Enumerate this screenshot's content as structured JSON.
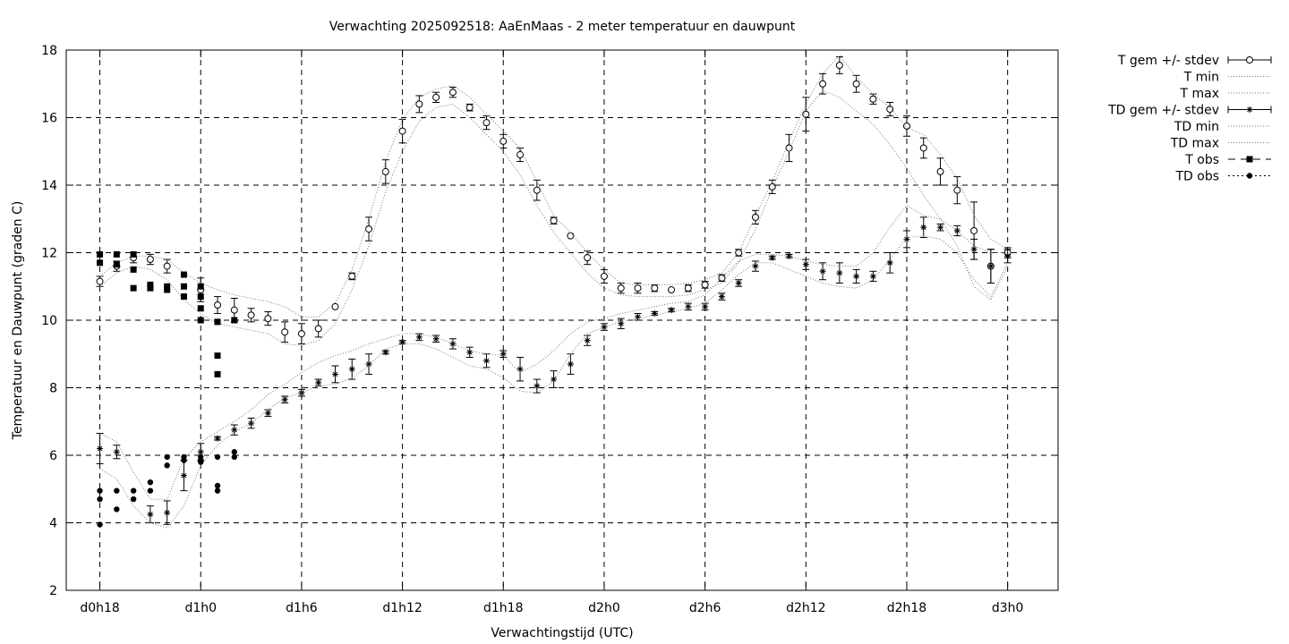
{
  "chart_data": {
    "type": "line",
    "title": "Verwachting 2025092518: AaEnMaas - 2 meter temperatuur en dauwpunt",
    "xlabel": "Verwachtingstijd (UTC)",
    "ylabel": "Temperatuur en Dauwpunt (graden C)",
    "x_unit": "hours since d0h0",
    "xlim": [
      16,
      75
    ],
    "ylim": [
      2,
      18
    ],
    "yticks": [
      2,
      4,
      6,
      8,
      10,
      12,
      14,
      16,
      18
    ],
    "xticks": [
      {
        "x": 18,
        "label": "d0h18"
      },
      {
        "x": 24,
        "label": "d1h0"
      },
      {
        "x": 30,
        "label": "d1h6"
      },
      {
        "x": 36,
        "label": "d1h12"
      },
      {
        "x": 42,
        "label": "d1h18"
      },
      {
        "x": 48,
        "label": "d2h0"
      },
      {
        "x": 54,
        "label": "d2h6"
      },
      {
        "x": 60,
        "label": "d2h12"
      },
      {
        "x": 66,
        "label": "d2h18"
      },
      {
        "x": 72,
        "label": "d3h0"
      }
    ],
    "grid": true,
    "legend_position": "outside-top-right",
    "series": [
      {
        "name": "T gem +/- stdev",
        "style": "errorbar-open-circle",
        "x": [
          18,
          19,
          20,
          21,
          22,
          24,
          25,
          26,
          27,
          28,
          29,
          30,
          31,
          32,
          33,
          34,
          35,
          36,
          37,
          38,
          39,
          40,
          41,
          42,
          43,
          44,
          45,
          46,
          47,
          48,
          49,
          50,
          51,
          52,
          53,
          54,
          55,
          56,
          57,
          58,
          59,
          60,
          61,
          62,
          63,
          64,
          65,
          66,
          67,
          68,
          69,
          70,
          71,
          72
        ],
        "y": [
          11.15,
          11.6,
          11.85,
          11.8,
          11.6,
          10.9,
          10.45,
          10.3,
          10.15,
          10.05,
          9.65,
          9.6,
          9.75,
          10.4,
          11.3,
          12.7,
          14.4,
          15.6,
          16.4,
          16.6,
          16.75,
          16.3,
          15.85,
          15.3,
          14.9,
          13.85,
          12.95,
          12.5,
          11.85,
          11.3,
          10.95,
          10.95,
          10.95,
          10.9,
          10.95,
          11.05,
          11.25,
          12.0,
          13.05,
          13.95,
          15.1,
          16.1,
          17.0,
          17.55,
          17.0,
          16.55,
          16.25,
          15.75,
          15.1,
          14.4,
          13.85,
          12.65,
          11.6,
          12.0
        ],
        "err": [
          0.15,
          0.15,
          0.15,
          0.15,
          0.2,
          0.35,
          0.25,
          0.35,
          0.2,
          0.2,
          0.3,
          0.3,
          0.25,
          0.0,
          0.1,
          0.35,
          0.35,
          0.35,
          0.25,
          0.15,
          0.15,
          0.1,
          0.2,
          0.2,
          0.2,
          0.3,
          0.1,
          0.0,
          0.2,
          0.2,
          0.15,
          0.15,
          0.1,
          0.0,
          0.1,
          0.1,
          0.1,
          0.1,
          0.2,
          0.2,
          0.4,
          0.5,
          0.3,
          0.25,
          0.25,
          0.15,
          0.2,
          0.3,
          0.3,
          0.4,
          0.4,
          0.85,
          0.5,
          0.15
        ]
      },
      {
        "name": "T min",
        "style": "dotted",
        "x": [
          18,
          19,
          20,
          21,
          22,
          23,
          24,
          25,
          26,
          27,
          28,
          29,
          30,
          31,
          32,
          33,
          34,
          35,
          36,
          37,
          38,
          39,
          40,
          41,
          42,
          43,
          44,
          45,
          46,
          47,
          48,
          49,
          50,
          51,
          52,
          53,
          54,
          55,
          56,
          57,
          58,
          59,
          60,
          61,
          62,
          63,
          64,
          65,
          66,
          67,
          68,
          69,
          70,
          71,
          72
        ],
        "y": [
          11.0,
          11.4,
          11.6,
          11.5,
          11.2,
          10.6,
          10.2,
          9.9,
          9.8,
          9.7,
          9.6,
          9.3,
          9.25,
          9.4,
          9.9,
          10.9,
          12.2,
          13.8,
          15.0,
          15.9,
          16.3,
          16.4,
          16.0,
          15.5,
          15.0,
          14.3,
          13.4,
          12.6,
          12.0,
          11.4,
          10.95,
          10.75,
          10.7,
          10.7,
          10.7,
          10.75,
          10.9,
          11.1,
          11.7,
          12.7,
          13.9,
          15.0,
          16.2,
          16.8,
          16.6,
          16.2,
          15.8,
          15.2,
          14.5,
          13.7,
          13.0,
          12.2,
          11.0,
          10.6,
          11.6
        ]
      },
      {
        "name": "T max",
        "style": "dotted",
        "x": [
          18,
          19,
          20,
          21,
          22,
          23,
          24,
          25,
          26,
          27,
          28,
          29,
          30,
          31,
          32,
          33,
          34,
          35,
          36,
          37,
          38,
          39,
          40,
          41,
          42,
          43,
          44,
          45,
          46,
          47,
          48,
          49,
          50,
          51,
          52,
          53,
          54,
          55,
          56,
          57,
          58,
          59,
          60,
          61,
          62,
          63,
          64,
          65,
          66,
          67,
          68,
          69,
          70,
          71,
          72
        ],
        "y": [
          11.3,
          11.7,
          11.9,
          11.9,
          11.8,
          11.4,
          11.1,
          10.9,
          10.75,
          10.65,
          10.55,
          10.4,
          10.1,
          10.1,
          10.5,
          11.5,
          13.0,
          14.7,
          15.95,
          16.6,
          16.85,
          16.95,
          16.6,
          16.1,
          15.6,
          15.1,
          14.1,
          13.1,
          12.6,
          12.0,
          11.5,
          11.1,
          11.05,
          11.05,
          11.05,
          11.1,
          11.2,
          11.4,
          12.0,
          13.1,
          14.1,
          15.3,
          16.4,
          17.3,
          17.85,
          17.2,
          16.7,
          16.3,
          15.7,
          15.5,
          14.9,
          14.2,
          13.1,
          12.4,
          12.1
        ]
      },
      {
        "name": "TD gem +/- stdev",
        "style": "errorbar-asterisk",
        "x": [
          18,
          19,
          21,
          22,
          23,
          24,
          25,
          26,
          27,
          28,
          29,
          30,
          31,
          32,
          33,
          34,
          35,
          36,
          37,
          38,
          39,
          40,
          41,
          42,
          43,
          44,
          45,
          46,
          47,
          48,
          49,
          50,
          51,
          52,
          53,
          54,
          55,
          56,
          57,
          58,
          59,
          60,
          61,
          62,
          63,
          64,
          65,
          66,
          67,
          68,
          69,
          70,
          71,
          72
        ],
        "y": [
          6.2,
          6.1,
          4.25,
          4.3,
          5.4,
          6.1,
          6.5,
          6.75,
          6.95,
          7.25,
          7.65,
          7.85,
          8.15,
          8.4,
          8.55,
          8.7,
          9.05,
          9.35,
          9.5,
          9.45,
          9.3,
          9.05,
          8.8,
          9.0,
          8.55,
          8.05,
          8.25,
          8.7,
          9.4,
          9.8,
          9.9,
          10.1,
          10.2,
          10.3,
          10.4,
          10.4,
          10.7,
          11.1,
          11.6,
          11.85,
          11.9,
          11.65,
          11.45,
          11.4,
          11.3,
          11.3,
          11.7,
          12.4,
          12.75,
          12.75,
          12.65,
          12.1,
          11.6,
          11.9
        ],
        "err": [
          0.45,
          0.2,
          0.25,
          0.35,
          0.45,
          0.25,
          0.05,
          0.15,
          0.15,
          0.1,
          0.1,
          0.1,
          0.1,
          0.25,
          0.3,
          0.3,
          0.05,
          0.05,
          0.1,
          0.1,
          0.15,
          0.15,
          0.2,
          0.1,
          0.35,
          0.2,
          0.25,
          0.3,
          0.15,
          0.1,
          0.15,
          0.1,
          0.05,
          0.05,
          0.1,
          0.1,
          0.1,
          0.1,
          0.15,
          0.05,
          0.05,
          0.15,
          0.25,
          0.3,
          0.2,
          0.15,
          0.3,
          0.25,
          0.3,
          0.1,
          0.15,
          0.3,
          0.5,
          0.2
        ]
      },
      {
        "name": "TD min",
        "style": "dotted",
        "x": [
          18,
          19,
          20,
          21,
          22,
          23,
          24,
          25,
          26,
          27,
          28,
          29,
          30,
          31,
          32,
          33,
          34,
          35,
          36,
          37,
          38,
          39,
          40,
          41,
          42,
          43,
          44,
          45,
          46,
          47,
          48,
          49,
          50,
          51,
          52,
          53,
          54,
          55,
          56,
          57,
          58,
          59,
          60,
          61,
          62,
          63,
          64,
          65,
          66,
          67,
          68,
          69,
          70,
          71,
          72
        ],
        "y": [
          5.6,
          5.3,
          4.5,
          4.0,
          3.85,
          4.5,
          5.7,
          6.3,
          6.7,
          6.95,
          7.35,
          7.7,
          7.85,
          8.05,
          8.1,
          8.3,
          8.65,
          9.15,
          9.3,
          9.3,
          9.15,
          8.9,
          8.65,
          8.55,
          8.3,
          7.9,
          7.85,
          8.2,
          9.0,
          9.6,
          9.8,
          9.95,
          10.05,
          10.15,
          10.25,
          10.35,
          10.5,
          10.9,
          11.35,
          11.7,
          11.7,
          11.5,
          11.3,
          11.1,
          11.0,
          10.95,
          11.2,
          11.8,
          12.45,
          12.5,
          12.4,
          12.0,
          11.2,
          10.7,
          11.7
        ]
      },
      {
        "name": "TD max",
        "style": "dotted",
        "x": [
          18,
          19,
          20,
          21,
          22,
          23,
          24,
          25,
          26,
          27,
          28,
          29,
          30,
          31,
          32,
          33,
          34,
          35,
          36,
          37,
          38,
          39,
          40,
          41,
          42,
          43,
          44,
          45,
          46,
          47,
          48,
          49,
          50,
          51,
          52,
          53,
          54,
          55,
          56,
          57,
          58,
          59,
          60,
          61,
          62,
          63,
          64,
          65,
          66,
          67,
          68,
          69,
          70,
          71,
          72
        ],
        "y": [
          6.65,
          6.4,
          5.5,
          4.7,
          4.7,
          5.9,
          6.4,
          6.7,
          7.0,
          7.35,
          7.8,
          8.1,
          8.45,
          8.75,
          8.95,
          9.1,
          9.3,
          9.45,
          9.6,
          9.6,
          9.5,
          9.3,
          9.1,
          9.0,
          8.95,
          8.45,
          8.7,
          9.1,
          9.6,
          9.95,
          10.05,
          10.2,
          10.3,
          10.4,
          10.5,
          10.55,
          10.75,
          11.25,
          11.75,
          11.95,
          11.95,
          11.9,
          11.75,
          11.65,
          11.6,
          11.6,
          12.0,
          12.75,
          13.4,
          13.1,
          13.0,
          12.65,
          12.2,
          12.0,
          12.0
        ]
      },
      {
        "name": "T obs",
        "style": "filled-square",
        "x": [
          18,
          18,
          19,
          19,
          20,
          20,
          20,
          21,
          21,
          22,
          22,
          23,
          23,
          23,
          24,
          24,
          24,
          24,
          25,
          25,
          25,
          26
        ],
        "y": [
          11.7,
          11.95,
          11.65,
          11.95,
          10.95,
          11.5,
          11.95,
          10.95,
          11.05,
          10.9,
          11.0,
          11.0,
          11.35,
          10.7,
          11.0,
          10.7,
          10.35,
          10.0,
          8.95,
          8.4,
          9.95,
          10.0
        ]
      },
      {
        "name": "TD obs",
        "style": "filled-circle",
        "x": [
          18,
          18,
          18,
          19,
          19,
          20,
          20,
          21,
          21,
          22,
          22,
          23,
          23,
          24,
          24,
          24,
          25,
          25,
          25,
          26,
          26
        ],
        "y": [
          4.95,
          4.7,
          3.95,
          4.95,
          4.4,
          4.95,
          4.7,
          4.95,
          5.2,
          5.7,
          5.95,
          5.85,
          5.95,
          5.85,
          5.95,
          5.8,
          5.95,
          5.1,
          4.95,
          5.95,
          6.1
        ]
      }
    ]
  }
}
